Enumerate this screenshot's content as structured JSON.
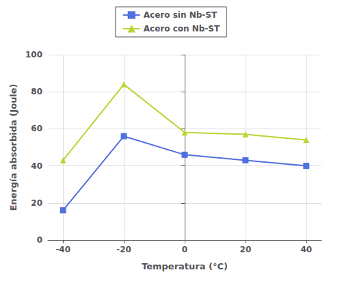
{
  "chart_data": {
    "type": "line",
    "x": [
      -40,
      -20,
      0,
      20,
      40
    ],
    "series": [
      {
        "name": "Acero sin Nb-ST",
        "values": [
          16,
          56,
          46,
          43,
          40
        ],
        "marker": "square"
      },
      {
        "name": "Acero con Nb-ST",
        "values": [
          43,
          84,
          58,
          57,
          54
        ],
        "marker": "triangle"
      }
    ],
    "xlabel": "Temperatura (°C)",
    "ylabel": "Energía absorbida (Joule)",
    "xlim": [
      -45,
      45
    ],
    "ylim": [
      0,
      100
    ],
    "xticks": [
      -40,
      -20,
      0,
      20,
      40
    ],
    "yticks": [
      0,
      20,
      40,
      60,
      80,
      100
    ],
    "grid": true,
    "legend": "top"
  }
}
